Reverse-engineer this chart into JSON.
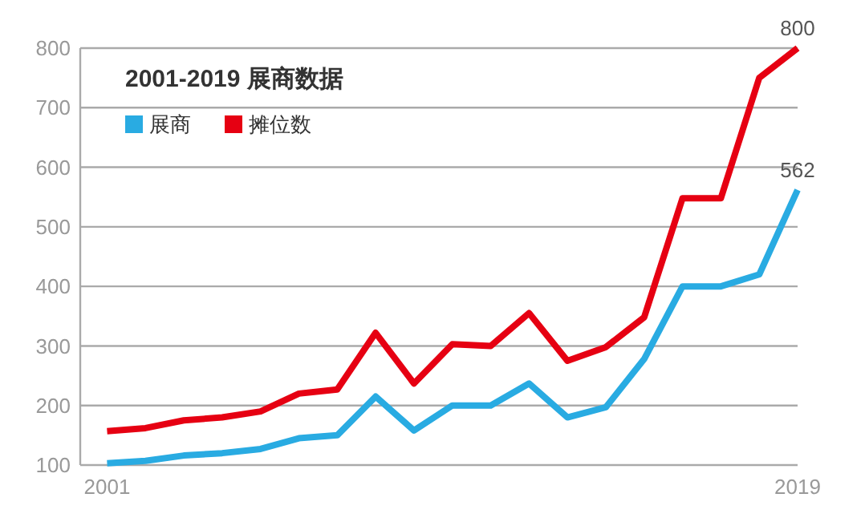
{
  "chart_data": {
    "type": "line",
    "title": "2001-2019 展商数据",
    "x": [
      2001,
      2002,
      2003,
      2004,
      2005,
      2006,
      2007,
      2008,
      2009,
      2010,
      2011,
      2012,
      2013,
      2014,
      2015,
      2016,
      2017,
      2018,
      2019
    ],
    "series": [
      {
        "name": "展商",
        "color": "#29abe2",
        "values": [
          103,
          107,
          116,
          120,
          127,
          145,
          150,
          215,
          158,
          200,
          200,
          237,
          180,
          197,
          278,
          400,
          400,
          420,
          562
        ]
      },
      {
        "name": "摊位数",
        "color": "#e60012",
        "values": [
          157,
          162,
          175,
          180,
          190,
          220,
          227,
          322,
          237,
          303,
          300,
          355,
          275,
          298,
          348,
          548,
          548,
          750,
          800
        ]
      }
    ],
    "xlim": [
      2000.3,
      2019
    ],
    "xticks": [
      2001,
      2019
    ],
    "ylim": [
      100,
      800
    ],
    "yticks": [
      100,
      200,
      300,
      400,
      500,
      600,
      700,
      800
    ],
    "grid": "y",
    "legend": "top left",
    "marker": "none",
    "line_style": "solid",
    "annotations": [
      {
        "text": "800",
        "x": 2019,
        "y": 800
      },
      {
        "text": "562",
        "x": 2019,
        "y": 562
      }
    ]
  }
}
